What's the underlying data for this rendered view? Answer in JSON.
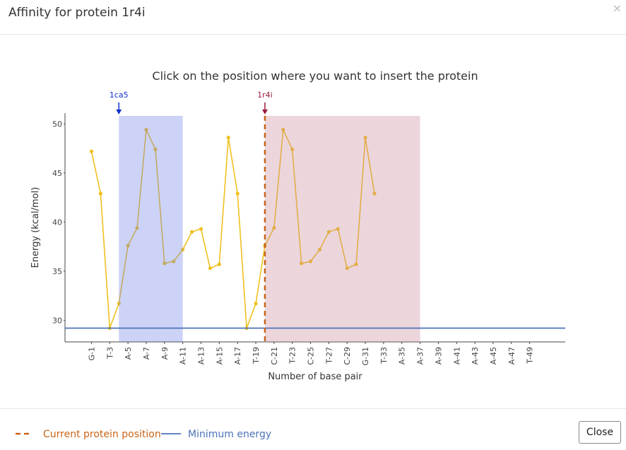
{
  "header": {
    "title": "Affinity for protein 1r4i",
    "close_icon": "×"
  },
  "chart_data": {
    "type": "line",
    "title": "Click on the position where you want to insert the protein",
    "x_label": "Number of base pair",
    "y_label": "Energy (kcal/mol)",
    "categories": [
      "G-1",
      null,
      "T-3",
      null,
      "A-5",
      null,
      "A-7",
      null,
      "A-9",
      null,
      "A-11",
      null,
      "A-13",
      null,
      "A-15",
      null,
      "A-17",
      null,
      "T-19",
      null,
      "C-21",
      null,
      "T-23",
      null,
      "C-25",
      null,
      "T-27",
      null,
      "C-29",
      null,
      "G-31",
      null,
      "T-33",
      null,
      "A-35",
      null,
      "A-37",
      null,
      "A-39",
      null,
      "A-41",
      null,
      "A-43",
      null,
      "A-45",
      null,
      "A-47",
      null,
      "T-49"
    ],
    "series": [
      {
        "color": "#f0c020",
        "values": [
          47.2,
          42.9,
          29.2,
          31.7,
          37.6,
          39.4,
          49.4,
          47.4,
          35.8,
          36.0,
          37.2,
          39.0,
          39.3,
          35.3,
          35.7,
          48.6,
          42.9,
          29.2,
          31.7,
          37.6,
          39.4,
          49.4,
          47.4,
          35.8,
          36.0,
          37.2,
          39.0,
          39.3,
          35.3,
          35.7,
          48.6,
          42.9,
          null,
          null,
          null,
          null,
          null,
          null,
          null,
          null,
          null,
          null,
          null,
          null,
          null,
          null,
          null,
          null,
          null
        ]
      }
    ],
    "minimum_energy": {
      "name": "Minimum energy",
      "value": 29.2,
      "color": "#4c72b8"
    },
    "current_position": {
      "name": "Current protein position",
      "index": 19,
      "color": "#c8641a"
    },
    "regions": [
      {
        "label": "1ca5",
        "start": 3,
        "end": 10,
        "color": "#6f82e8",
        "marker_color": "#1030d0"
      },
      {
        "label": "1r4i",
        "start": 19,
        "end": 36,
        "color": "#c98a9c",
        "marker_color": "#9b1b3a"
      }
    ],
    "xlim": [
      -2.9,
      51.9
    ],
    "ylim": [
      27.8,
      51.1
    ],
    "yticks": [
      30,
      35,
      40,
      45,
      50
    ]
  },
  "footer": {
    "close_button": "Close"
  }
}
